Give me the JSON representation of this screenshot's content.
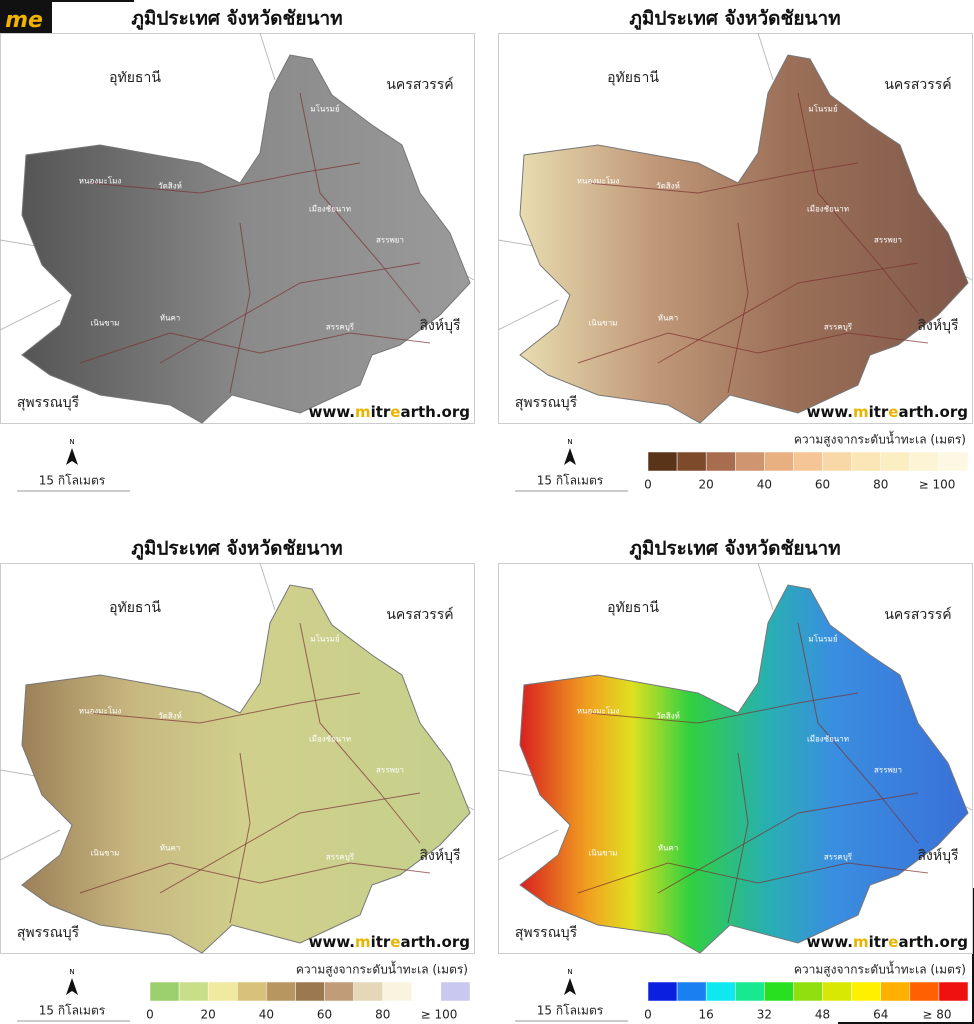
{
  "logo": "me",
  "panels": [
    {
      "title": "ภูมิประเทศ จังหวัดชัยนาท",
      "style": "gray",
      "neighbors": [
        "อุทัยธานี",
        "นครสวรรค์",
        "สิงห์บุรี",
        "สุพรรณบุรี"
      ],
      "districts": [
        "หนองมะโมง",
        "วัดสิงห์",
        "มโนรมย์",
        "เมืองชัยนาท",
        "สรรพยา",
        "สรรคบุรี",
        "หันคา",
        "เนินขาม"
      ],
      "watermark": [
        {
          "text": "www.",
          "color": "#111"
        },
        {
          "text": "m",
          "color": "#e8b400"
        },
        {
          "text": "itr",
          "color": "#111"
        },
        {
          "text": "e",
          "color": "#e8b400"
        },
        {
          "text": "arth.org",
          "color": "#111"
        }
      ],
      "north": "N",
      "scale": "15 กิโลเมตร",
      "legend": null
    },
    {
      "title": "ภูมิประเทศ จังหวัดชัยนาท",
      "style": "brown",
      "neighbors": [
        "อุทัยธานี",
        "นครสวรรค์",
        "สิงห์บุรี",
        "สุพรรณบุรี"
      ],
      "districts": [
        "หนองมะโมง",
        "วัดสิงห์",
        "มโนรมย์",
        "เมืองชัยนาท",
        "สรรพยา",
        "สรรคบุรี",
        "หันคา",
        "เนินขาม"
      ],
      "watermark": [
        {
          "text": "www.",
          "color": "#111"
        },
        {
          "text": "m",
          "color": "#e8b400"
        },
        {
          "text": "itr",
          "color": "#111"
        },
        {
          "text": "e",
          "color": "#e8b400"
        },
        {
          "text": "arth.org",
          "color": "#111"
        }
      ],
      "north": "N",
      "scale": "15 กิโลเมตร",
      "legend": {
        "title": "ความสูงจากระดับน้ำทะเล (เมตร)",
        "colors": [
          "#5a3418",
          "#7e4a2c",
          "#a86c4e",
          "#cf9470",
          "#e8b080",
          "#f5c596",
          "#f8d8a6",
          "#fae6b6",
          "#fbeec2",
          "#fcf4d4",
          "#fdf8e4"
        ],
        "ticks": [
          "0",
          "20",
          "40",
          "60",
          "80",
          "≥ 100"
        ]
      }
    },
    {
      "title": "ภูมิประเทศ จังหวัดชัยนาท",
      "style": "green",
      "neighbors": [
        "อุทัยธานี",
        "นครสวรรค์",
        "สิงห์บุรี",
        "สุพรรณบุรี"
      ],
      "districts": [
        "หนองมะโมง",
        "วัดสิงห์",
        "มโนรมย์",
        "เมืองชัยนาท",
        "สรรพยา",
        "สรรคบุรี",
        "หันคา",
        "เนินขาม"
      ],
      "watermark": [
        {
          "text": "www.",
          "color": "#111"
        },
        {
          "text": "m",
          "color": "#e8b400"
        },
        {
          "text": "itr",
          "color": "#111"
        },
        {
          "text": "e",
          "color": "#e8b400"
        },
        {
          "text": "arth.org",
          "color": "#111"
        }
      ],
      "north": "N",
      "scale": "15 กิโลเมตร",
      "legend": {
        "title": "ความสูงจากระดับน้ำทะเล (เมตร)",
        "colors": [
          "#9ccf6e",
          "#c8df8a",
          "#f0eaa0",
          "#d8c27a",
          "#b89660",
          "#9c7850",
          "#c09c78",
          "#e4d8b8",
          "#f8f4e0",
          "#ffffff",
          "#c8c8f0"
        ],
        "ticks": [
          "0",
          "20",
          "40",
          "60",
          "80",
          "≥ 100"
        ]
      }
    },
    {
      "title": "ภูมิประเทศ จังหวัดชัยนาท",
      "style": "rainbow",
      "neighbors": [
        "อุทัยธานี",
        "นครสวรรค์",
        "สิงห์บุรี",
        "สุพรรณบุรี"
      ],
      "districts": [
        "หนองมะโมง",
        "วัดสิงห์",
        "มโนรมย์",
        "เมืองชัยนาท",
        "สรรพยา",
        "สรรคบุรี",
        "หันคา",
        "เนินขาม"
      ],
      "watermark": [
        {
          "text": "www.",
          "color": "#111"
        },
        {
          "text": "m",
          "color": "#e8b400"
        },
        {
          "text": "itr",
          "color": "#111"
        },
        {
          "text": "e",
          "color": "#e8b400"
        },
        {
          "text": "arth.org",
          "color": "#111"
        }
      ],
      "north": "N",
      "scale": "15 กิโลเมตร",
      "legend": {
        "title": "ความสูงจากระดับน้ำทะเล (เมตร)",
        "colors": [
          "#0a1fe0",
          "#1a7ff0",
          "#10e8f0",
          "#18e890",
          "#28e020",
          "#90e010",
          "#d8e800",
          "#fff000",
          "#ffb000",
          "#ff6000",
          "#f01010"
        ],
        "ticks": [
          "0",
          "16",
          "32",
          "48",
          "64",
          "≥ 80"
        ]
      }
    }
  ]
}
